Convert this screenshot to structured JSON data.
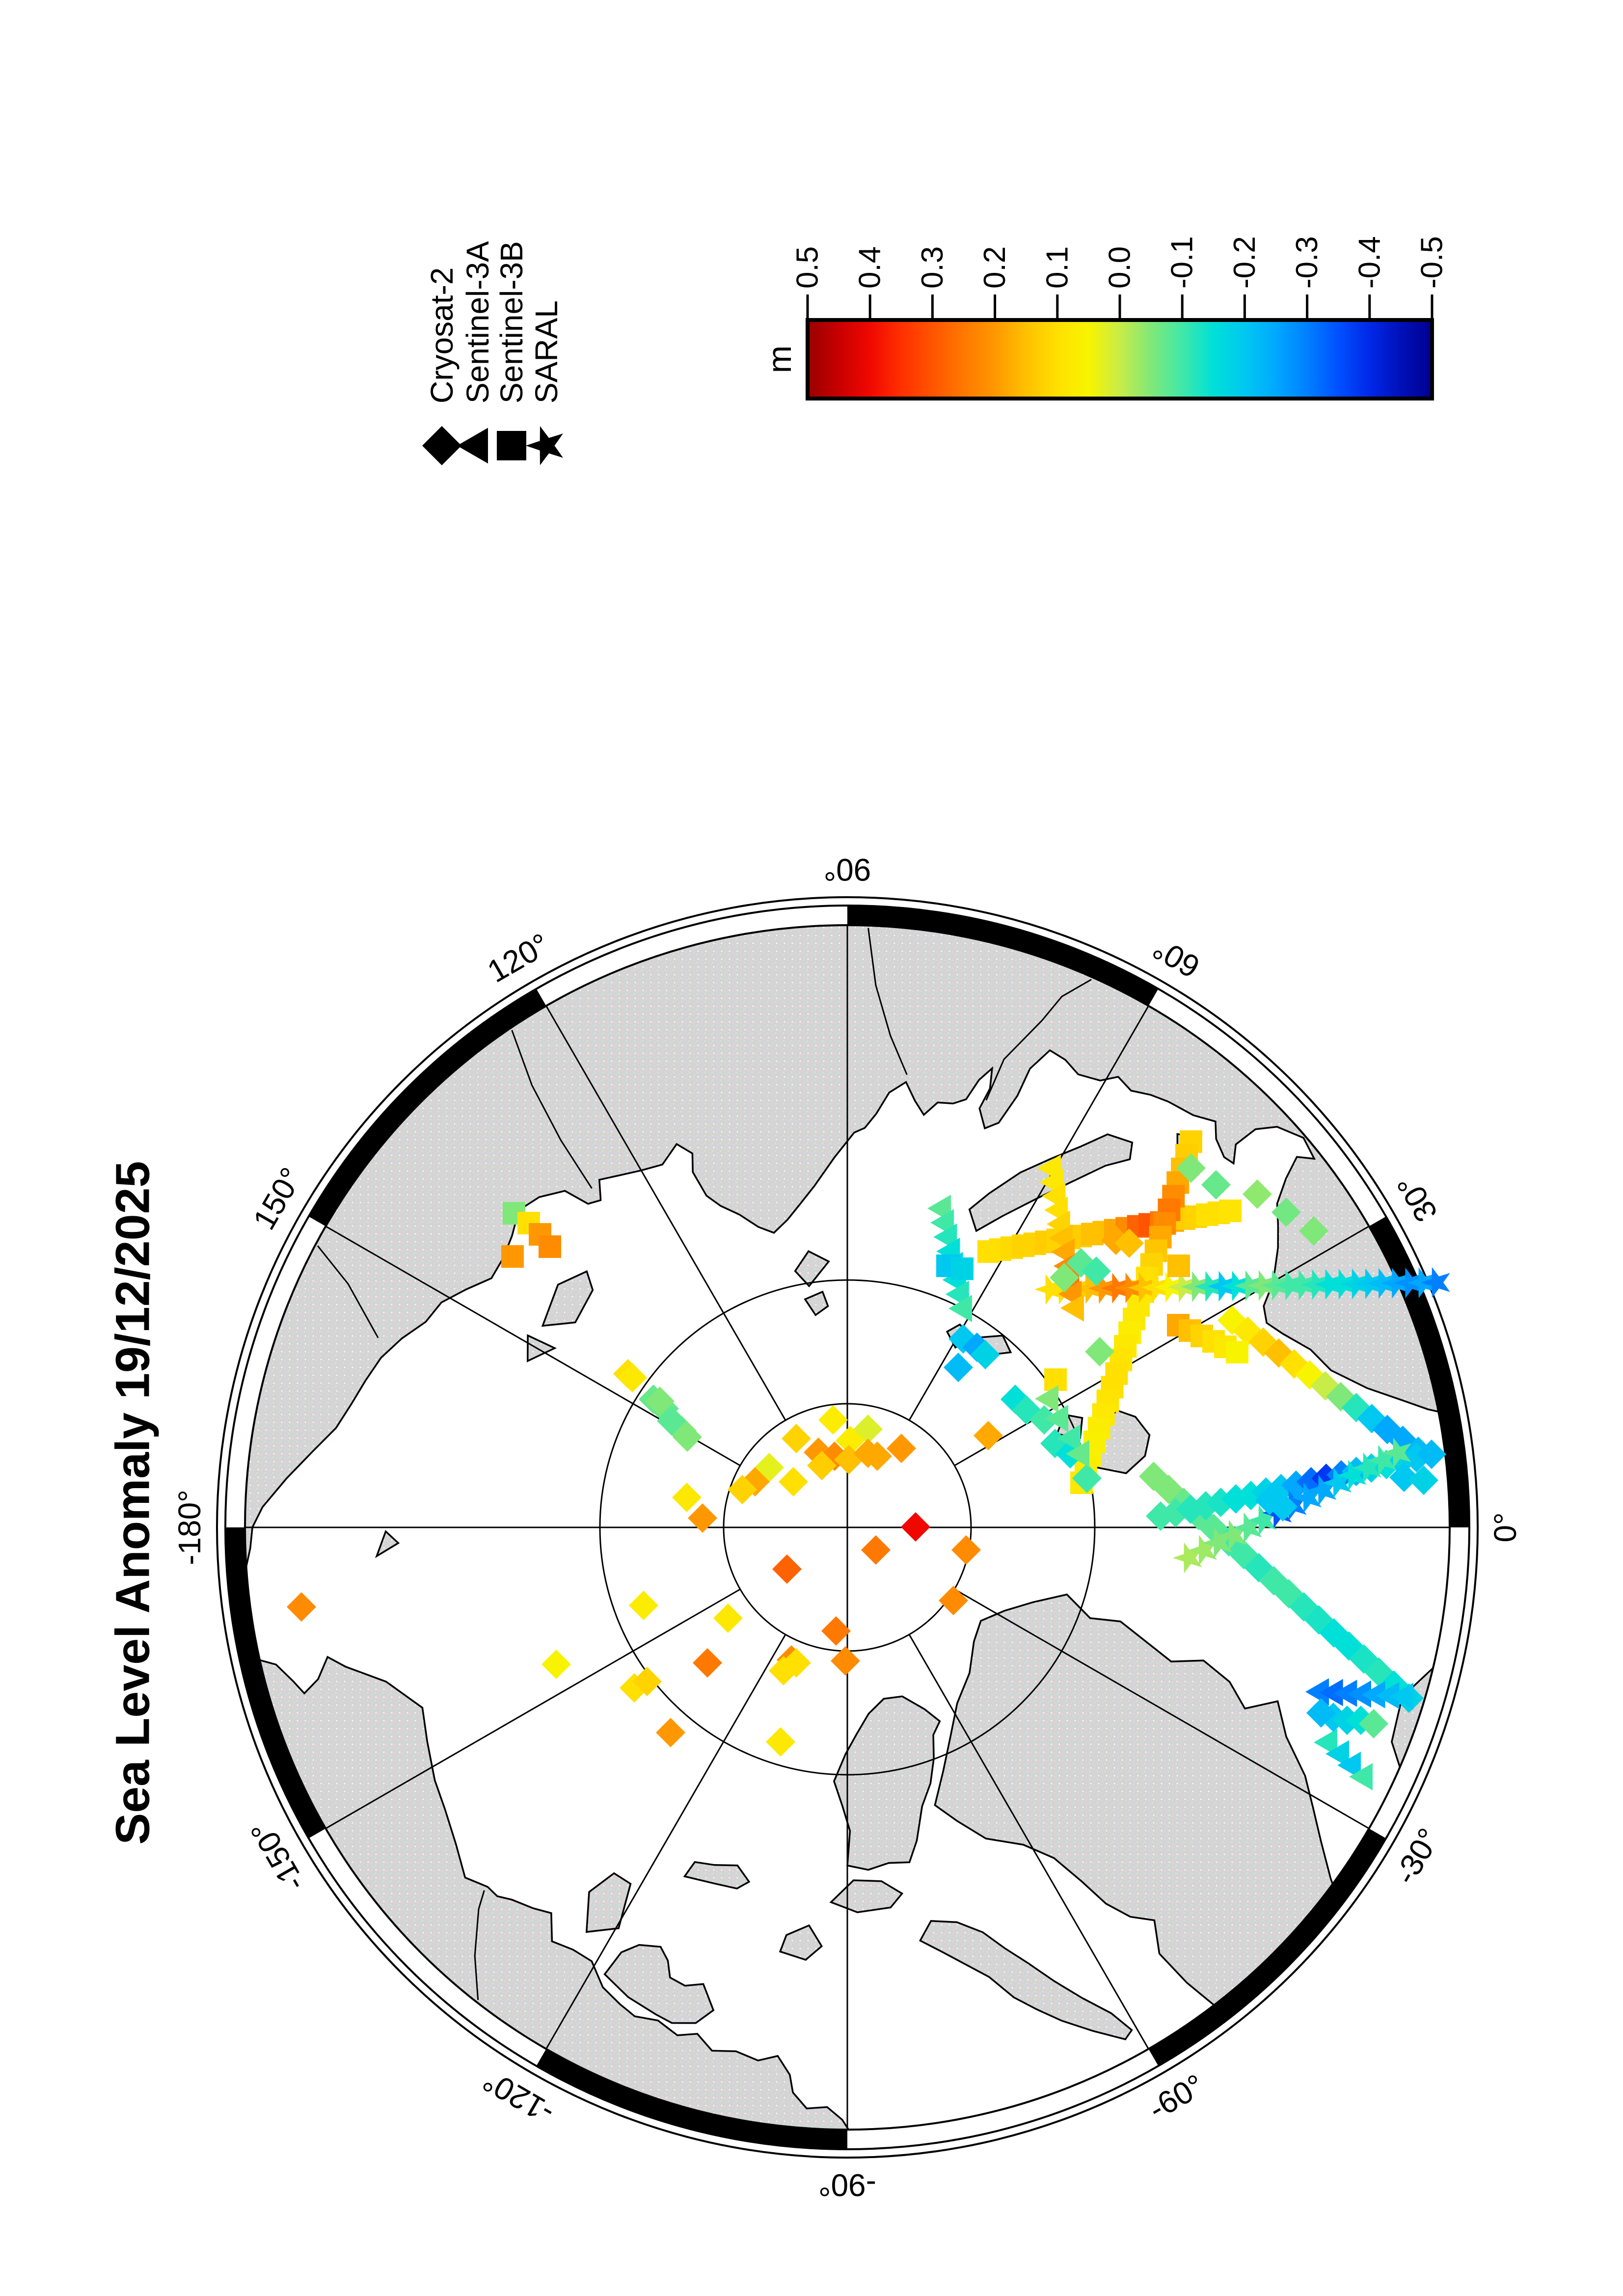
{
  "title": "Sea Level Anomaly 19/12/2025",
  "legend": {
    "items": [
      {
        "label": "Cryosat-2",
        "symbol": "diamond"
      },
      {
        "label": "Sentinel-3A",
        "symbol": "triangle"
      },
      {
        "label": "Sentinel-3B",
        "symbol": "square"
      },
      {
        "label": "SARAL",
        "symbol": "star"
      }
    ]
  },
  "colorbar": {
    "unit": "m",
    "min": -0.5,
    "max": 0.5,
    "ticks": [
      "0.5",
      "0.4",
      "0.3",
      "0.2",
      "0.1",
      "0.0",
      "-0.1",
      "-0.2",
      "-0.3",
      "-0.4",
      "-0.5"
    ],
    "stops": [
      [
        -0.5,
        "#000090"
      ],
      [
        -0.45,
        "#0010b8"
      ],
      [
        -0.4,
        "#0028e8"
      ],
      [
        -0.35,
        "#0050ff"
      ],
      [
        -0.3,
        "#0080ff"
      ],
      [
        -0.25,
        "#00a8ff"
      ],
      [
        -0.2,
        "#00c8f0"
      ],
      [
        -0.15,
        "#00e0d8"
      ],
      [
        -0.1,
        "#40e8a8"
      ],
      [
        -0.05,
        "#80e878"
      ],
      [
        0,
        "#c8ec48"
      ],
      [
        0.05,
        "#f8f400"
      ],
      [
        0.1,
        "#ffe000"
      ],
      [
        0.15,
        "#ffc000"
      ],
      [
        0.2,
        "#ff9800"
      ],
      [
        0.25,
        "#ff7800"
      ],
      [
        0.3,
        "#ff5400"
      ],
      [
        0.35,
        "#ff3000"
      ],
      [
        0.4,
        "#f00800"
      ],
      [
        0.45,
        "#c80000"
      ],
      [
        0.5,
        "#980000"
      ]
    ]
  },
  "map": {
    "lon_labels": [
      {
        "lon": 90,
        "text": "90°"
      },
      {
        "lon": 60,
        "text": "60°"
      },
      {
        "lon": 30,
        "text": "30°"
      },
      {
        "lon": 0,
        "text": "0°"
      },
      {
        "lon": -30,
        "text": "-30°"
      },
      {
        "lon": -60,
        "text": "-60°"
      },
      {
        "lon": -90,
        "text": "-90°"
      },
      {
        "lon": -120,
        "text": "-120°"
      },
      {
        "lon": -150,
        "text": "-150°"
      },
      {
        "lon": 180,
        "text": "-180°"
      },
      {
        "lon": 150,
        "text": "150°"
      },
      {
        "lon": 120,
        "text": "120°"
      }
    ],
    "land_color": "#d4d4d4",
    "ocean_color": "#ffffff"
  },
  "chart_data": {
    "type": "scatter",
    "title": "Sea Level Anomaly 19/12/2025",
    "units": "m",
    "projection": "north polar stereographic-like, pole center (1726,3112)px, radius 1227px ~ lat 65.6N, lon 0 at right, 90E top",
    "value_range": [
      -0.5,
      0.5
    ],
    "satellites": {
      "C2": "Cryosat-2",
      "S3A": "Sentinel-3A",
      "S3B": "Sentinel-3B",
      "SR": "SARAL"
    },
    "points": {
      "C2": [
        [
          1697,
          2893,
          0.07
        ],
        [
          1768,
          2912,
          0.02
        ],
        [
          1732,
          2935,
          0.07
        ],
        [
          1667,
          2959,
          0.2
        ],
        [
          1700,
          2967,
          0.22
        ],
        [
          1729,
          2974,
          0.15
        ],
        [
          1768,
          2961,
          0.18
        ],
        [
          1787,
          2967,
          0.18
        ],
        [
          1836,
          2951,
          0.2
        ],
        [
          1622,
          2931,
          0.12
        ],
        [
          1674,
          2986,
          0.13
        ],
        [
          1567,
          2990,
          0.03
        ],
        [
          1538,
          3019,
          0.18
        ],
        [
          1512,
          3035,
          0.12
        ],
        [
          1616,
          3019,
          0.1
        ],
        [
          1399,
          3051,
          0.08
        ],
        [
          1431,
          3093,
          0.2
        ],
        [
          1865,
          3111,
          0.4
        ],
        [
          1784,
          3158,
          0.25
        ],
        [
          1968,
          3158,
          0.22
        ],
        [
          1603,
          3197,
          0.28
        ],
        [
          1942,
          3261,
          0.22
        ],
        [
          1703,
          3323,
          0.25
        ],
        [
          1722,
          3384,
          0.22
        ],
        [
          1612,
          3382,
          0.22
        ],
        [
          1596,
          3404,
          0.1
        ],
        [
          1622,
          3388,
          0.1
        ],
        [
          1483,
          3297,
          0.08
        ],
        [
          1441,
          3388,
          0.25
        ],
        [
          1311,
          3271,
          0.07
        ],
        [
          1292,
          3439,
          0.1
        ],
        [
          1318,
          3426,
          0.12
        ],
        [
          1366,
          3530,
          0.2
        ],
        [
          1590,
          3549,
          0.08
        ],
        [
          1279,
          2799,
          0.1
        ],
        [
          1331,
          2851,
          -0.07
        ],
        [
          1353,
          2870,
          -0.07
        ],
        [
          1389,
          2915,
          -0.05
        ],
        [
          1962,
          2728,
          -0.2
        ],
        [
          1990,
          2745,
          -0.25
        ],
        [
          2007,
          2760,
          -0.18
        ],
        [
          1952,
          2786,
          -0.22
        ],
        [
          2068,
          2851,
          -0.15
        ],
        [
          2091,
          2873,
          -0.12
        ],
        [
          2127,
          2893,
          -0.1
        ],
        [
          2013,
          2925,
          0.18
        ],
        [
          2149,
          2941,
          -0.12
        ],
        [
          2180,
          2962,
          -0.15
        ],
        [
          2214,
          3012,
          -0.1
        ],
        [
          2240,
          2754,
          -0.05
        ],
        [
          1288,
          2807,
          0.08
        ],
        [
          1344,
          2855,
          -0.05
        ],
        [
          1368,
          2895,
          -0.08
        ],
        [
          1400,
          2928,
          -0.05
        ],
        [
          614,
          3274,
          0.22
        ],
        [
          1133,
          3391,
          0.05
        ],
        [
          2426,
          2380,
          -0.05
        ],
        [
          2477,
          2414,
          -0.07
        ],
        [
          2561,
          2433,
          -0.04
        ],
        [
          2620,
          2470,
          -0.06
        ],
        [
          2676,
          2508,
          -0.05
        ],
        [
          2273,
          2527,
          0.18
        ],
        [
          2300,
          2533,
          0.15
        ],
        [
          2202,
          2573,
          -0.08
        ],
        [
          2233,
          2590,
          -0.1
        ],
        [
          2168,
          2603,
          -0.05
        ],
        [
          2716,
          3499,
          -0.2
        ],
        [
          2744,
          3505,
          -0.18
        ],
        [
          2691,
          3490,
          -0.22
        ],
        [
          2772,
          3505,
          -0.15
        ],
        [
          2798,
          3512,
          -0.08
        ],
        [
          2586,
          3057,
          -0.2
        ],
        [
          2613,
          3070,
          -0.2
        ],
        [
          2860,
          3010,
          -0.2
        ],
        [
          2900,
          3016,
          -0.18
        ]
      ],
      "S3B": [
        [
          1047,
          2472,
          -0.05
        ],
        [
          1077,
          2492,
          0.1
        ],
        [
          1100,
          2515,
          0.2
        ],
        [
          1120,
          2540,
          0.22
        ],
        [
          1044,
          2560,
          0.2
        ],
        [
          1930,
          2579,
          -0.2
        ],
        [
          1960,
          2585,
          -0.18
        ],
        [
          2150,
          2811,
          0.1
        ],
        [
          2401,
          2579,
          0.15
        ]
      ],
      "S3A": [
        [
          2140,
          2850,
          -0.05
        ],
        [
          2160,
          2890,
          -0.08
        ],
        [
          2185,
          2930,
          -0.1
        ],
        [
          2203,
          2962,
          -0.07
        ]
      ],
      "SR": []
    },
    "tracks": [
      {
        "s": "S3B",
        "p": [
          [
            2014,
            2550
          ],
          [
            2506,
            2467
          ]
        ],
        "n": 22,
        "v": [
          0.1,
          0.1,
          0.11,
          0.12,
          0.12,
          0.13,
          0.12,
          0.12,
          0.13,
          0.15,
          0.15,
          0.18,
          0.22,
          0.28,
          0.3,
          0.25,
          0.18,
          0.13,
          0.12,
          0.1,
          0.1,
          0.09
        ]
      },
      {
        "s": "S3B",
        "p": [
          [
            2426,
            2326
          ],
          [
            2203,
            3021
          ]
        ],
        "n": 26,
        "v": [
          0.12,
          0.13,
          0.15,
          0.18,
          0.22,
          0.25,
          0.22,
          0.18,
          0.14,
          0.12,
          0.1,
          0.09,
          0.08,
          0.08,
          0.07,
          0.08,
          0.09,
          0.1,
          0.1,
          0.09,
          0.08,
          0.07,
          0.06,
          0.06,
          0.07,
          0.08
        ]
      },
      {
        "s": "S3A",
        "p": [
          [
            1921,
            2462
          ],
          [
            1964,
            2666
          ]
        ],
        "n": 8,
        "v": [
          -0.08,
          -0.1,
          -0.12,
          -0.15,
          -0.18,
          -0.15,
          -0.12,
          -0.1
        ]
      },
      {
        "s": "SR",
        "p": [
          [
            2140,
            2627
          ],
          [
            2927,
            2613
          ]
        ],
        "n": 30,
        "v": [
          0.1,
          0.1,
          0.12,
          0.15,
          0.2,
          0.25,
          0.22,
          0.15,
          0.1,
          0.05,
          0,
          -0.05,
          -0.12,
          -0.2,
          -0.15,
          -0.08,
          -0.05,
          -0.08,
          -0.1,
          -0.1,
          -0.12,
          -0.15,
          -0.15,
          -0.18,
          -0.2,
          -0.22,
          -0.25,
          -0.28,
          -0.25,
          -0.3
        ]
      },
      {
        "s": "S3A",
        "p": [
          [
            2145,
            2380
          ],
          [
            2192,
            2665
          ]
        ],
        "n": 11,
        "v": [
          0.08,
          0.08,
          0.1,
          0.1,
          0.12,
          0.15,
          0.18,
          0.22,
          0.25,
          0.2,
          0.15
        ]
      },
      {
        "s": "C2",
        "p": [
          [
            2510,
            2690
          ],
          [
            2889,
            2957
          ]
        ],
        "n": 13,
        "v": [
          0.05,
          0.08,
          0.12,
          0.15,
          0.1,
          0.05,
          0,
          -0.05,
          -0.12,
          -0.2,
          -0.25,
          -0.25,
          -0.22
        ]
      },
      {
        "s": "S3B",
        "p": [
          [
            2400,
            2700
          ],
          [
            2520,
            2755
          ]
        ],
        "n": 6,
        "v": [
          0.18,
          0.15,
          0.12,
          0.1,
          0.08,
          0.05
        ]
      },
      {
        "s": "C2",
        "p": [
          [
            2350,
            3008
          ],
          [
            2870,
            3460
          ]
        ],
        "n": 18,
        "v": [
          -0.05,
          -0.05,
          -0.07,
          -0.08,
          -0.08,
          -0.1,
          -0.1,
          -0.12,
          -0.1,
          -0.1,
          -0.12,
          -0.13,
          -0.15,
          -0.15,
          -0.13,
          -0.12,
          -0.15,
          -0.18
        ]
      },
      {
        "s": "C2",
        "p": [
          [
            2364,
            3089
          ],
          [
            2916,
            2963
          ]
        ],
        "n": 19,
        "v": [
          -0.1,
          -0.1,
          -0.12,
          -0.12,
          -0.13,
          -0.15,
          -0.15,
          -0.18,
          -0.2,
          -0.25,
          -0.32,
          -0.38,
          -0.3,
          -0.22,
          -0.18,
          -0.15,
          -0.18,
          -0.2,
          -0.22
        ]
      },
      {
        "s": "SR",
        "p": [
          [
            2422,
            3174
          ],
          [
            2848,
            2960
          ]
        ],
        "n": 15,
        "v": [
          -0.02,
          -0.03,
          -0.05,
          -0.05,
          -0.08,
          -0.1,
          -0.35,
          -0.3,
          -0.25,
          -0.25,
          -0.2,
          -0.15,
          -0.12,
          -0.1,
          -0.08
        ]
      },
      {
        "s": "S3A",
        "p": [
          [
            2691,
            3447
          ],
          [
            2863,
            3456
          ]
        ],
        "n": 7,
        "v": [
          -0.3,
          -0.32,
          -0.3,
          -0.28,
          -0.25,
          -0.22,
          -0.2
        ]
      },
      {
        "s": "S3A",
        "p": [
          [
            2708,
            3550
          ],
          [
            2780,
            3620
          ]
        ],
        "n": 4,
        "v": [
          -0.12,
          -0.18,
          -0.2,
          -0.1
        ]
      }
    ]
  }
}
